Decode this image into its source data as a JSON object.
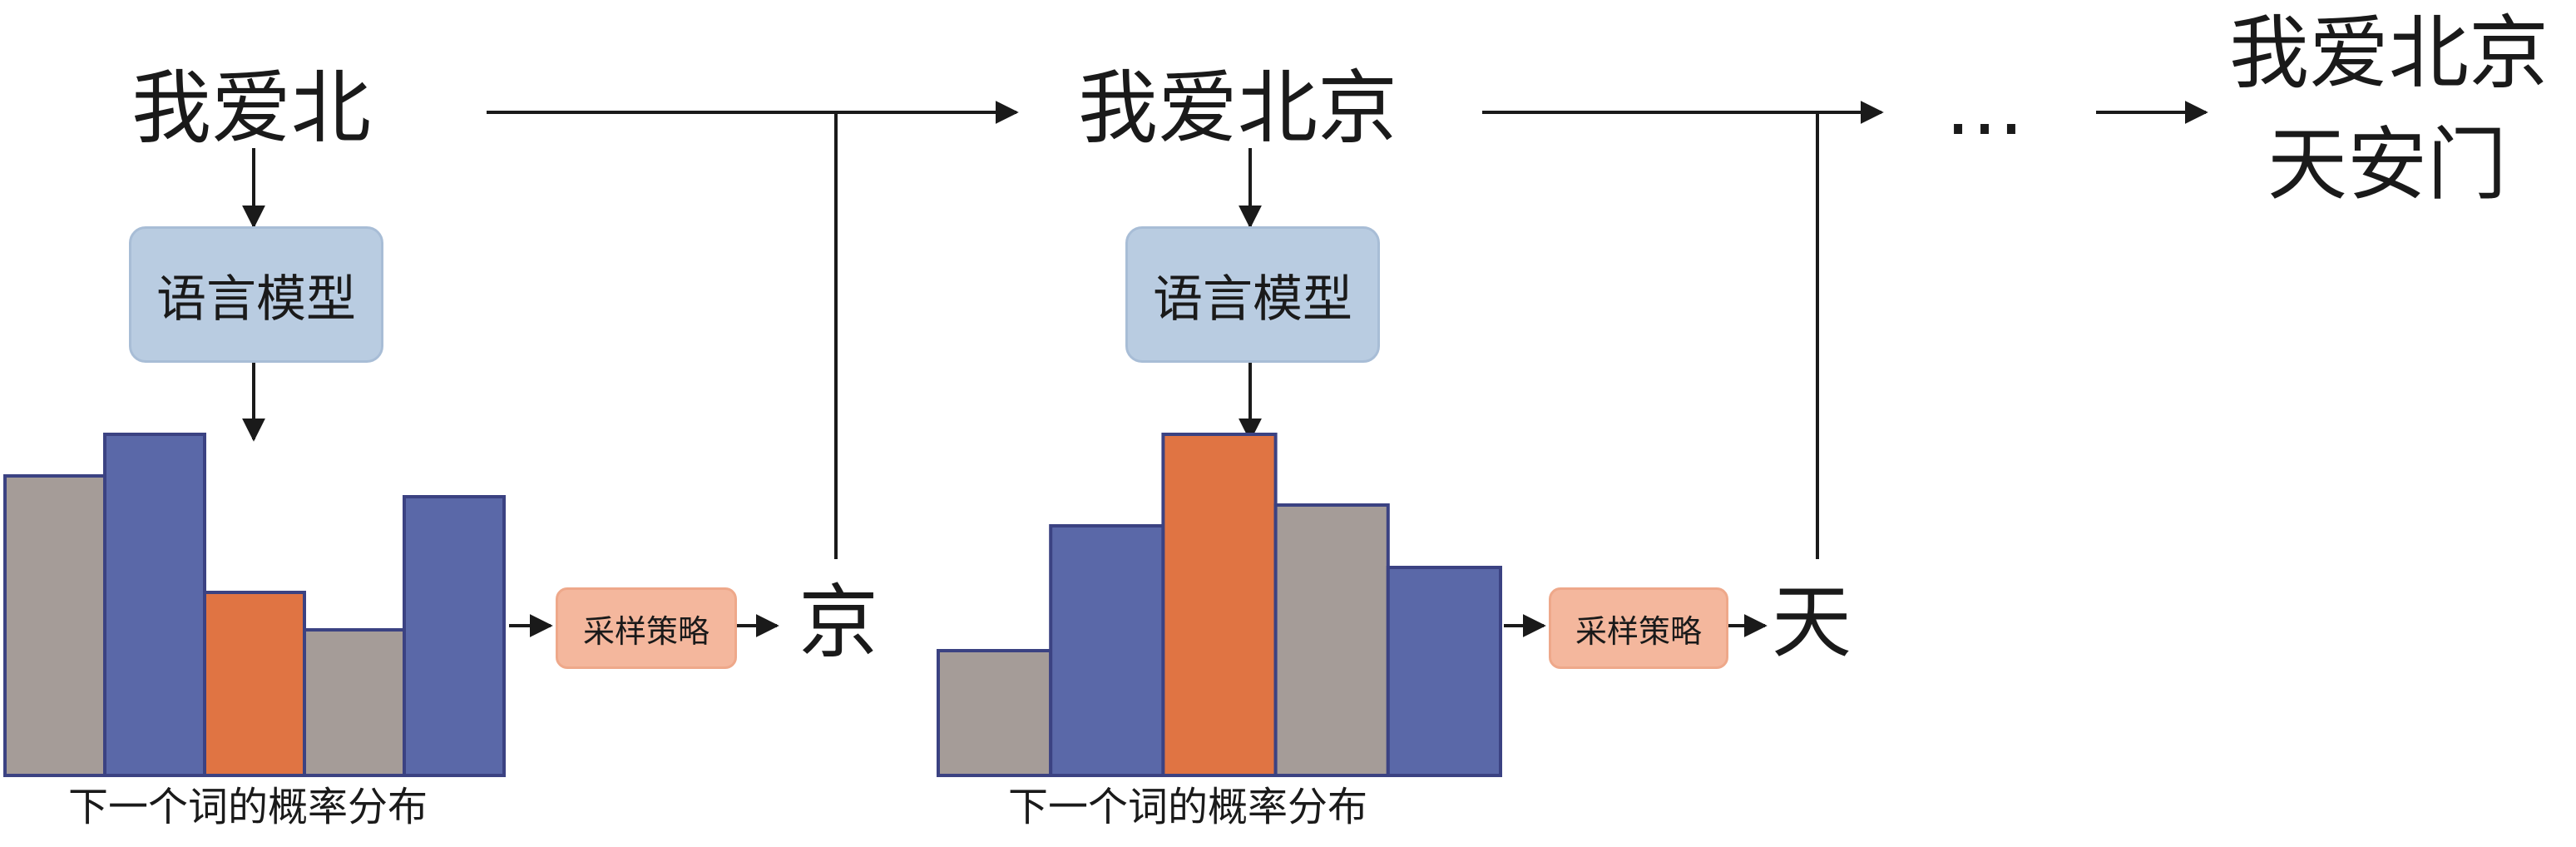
{
  "steps": [
    {
      "input": "我爱北",
      "model": "语言模型",
      "sampler": "采样策略",
      "output": "京",
      "caption": "下一个词的概率分布",
      "distribution": [
        0.72,
        0.82,
        0.44,
        0.35,
        0.67
      ],
      "selected_index": 2
    },
    {
      "input": "我爱北京",
      "model": "语言模型",
      "sampler": "采样策略",
      "output": "天",
      "caption": "下一个词的概率分布",
      "distribution": [
        0.3,
        0.6,
        0.82,
        0.65,
        0.5
      ],
      "selected_index": 2
    }
  ],
  "ellipsis": "…",
  "final": {
    "line1": "我爱北京",
    "line2": "天安门"
  },
  "colors": {
    "bar_gray": "#a59c98",
    "bar_blue": "#5a68a8",
    "bar_orange": "#e07443",
    "bar_border": "#3b4282",
    "model_box": "#b9cce1",
    "sampler_box": "#f4b79d"
  },
  "bar_colors": [
    [
      "gray",
      "blue",
      "orange",
      "gray",
      "blue"
    ],
    [
      "gray",
      "blue",
      "orange",
      "gray",
      "blue"
    ]
  ]
}
